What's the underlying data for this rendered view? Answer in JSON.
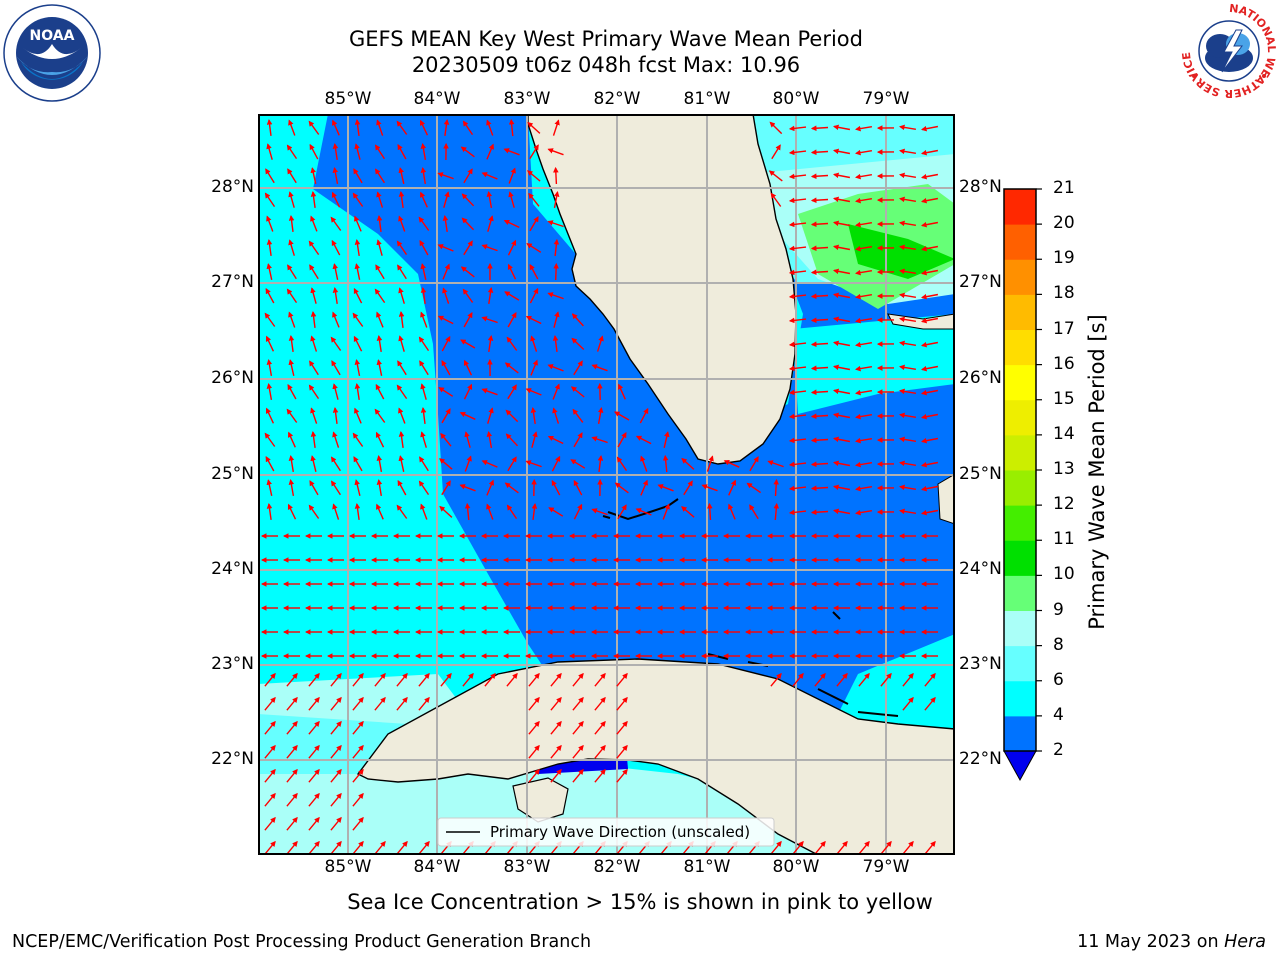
{
  "title": {
    "line1": "GEFS MEAN Key West Primary Wave Mean Period",
    "line2": "20230509 t06z 048h fcst   Max: 10.96"
  },
  "map": {
    "lon_labels": [
      "85°W",
      "84°W",
      "83°W",
      "82°W",
      "81°W",
      "80°W",
      "79°W"
    ],
    "lat_labels": [
      "28°N",
      "27°N",
      "26°N",
      "25°N",
      "24°N",
      "23°N",
      "22°N"
    ],
    "legend_text": "Primary Wave Direction (unscaled)",
    "arrow_color": "#ff0000",
    "land_color": "#efecdc",
    "grid_color": "#b0b0b0"
  },
  "colorbar": {
    "label": "Primary Wave Mean Period [s]",
    "ticks": [
      "2",
      "4",
      "6",
      "8",
      "9",
      "10",
      "11",
      "12",
      "13",
      "14",
      "15",
      "16",
      "17",
      "18",
      "19",
      "20",
      "21"
    ],
    "colors": [
      "#0073ff",
      "#00ffff",
      "#66ffff",
      "#aafff8",
      "#66ff77",
      "#00e000",
      "#44ee00",
      "#99ee00",
      "#ccee00",
      "#eeee00",
      "#ffff00",
      "#ffdd00",
      "#ffbb00",
      "#ff9000",
      "#ff6000",
      "#ff2800"
    ],
    "under_color": "#0000ee"
  },
  "subtitle": "Sea Ice Concentration > 15% is shown in pink to yellow",
  "footer": {
    "left": "NCEP/EMC/Verification Post Processing Product Generation Branch",
    "right_date": "11 May 2023 on",
    "right_machine": "Hera"
  },
  "logos": {
    "noaa": "NOAA",
    "nws_ring": "NATIONAL WEATHER SERVICE"
  }
}
